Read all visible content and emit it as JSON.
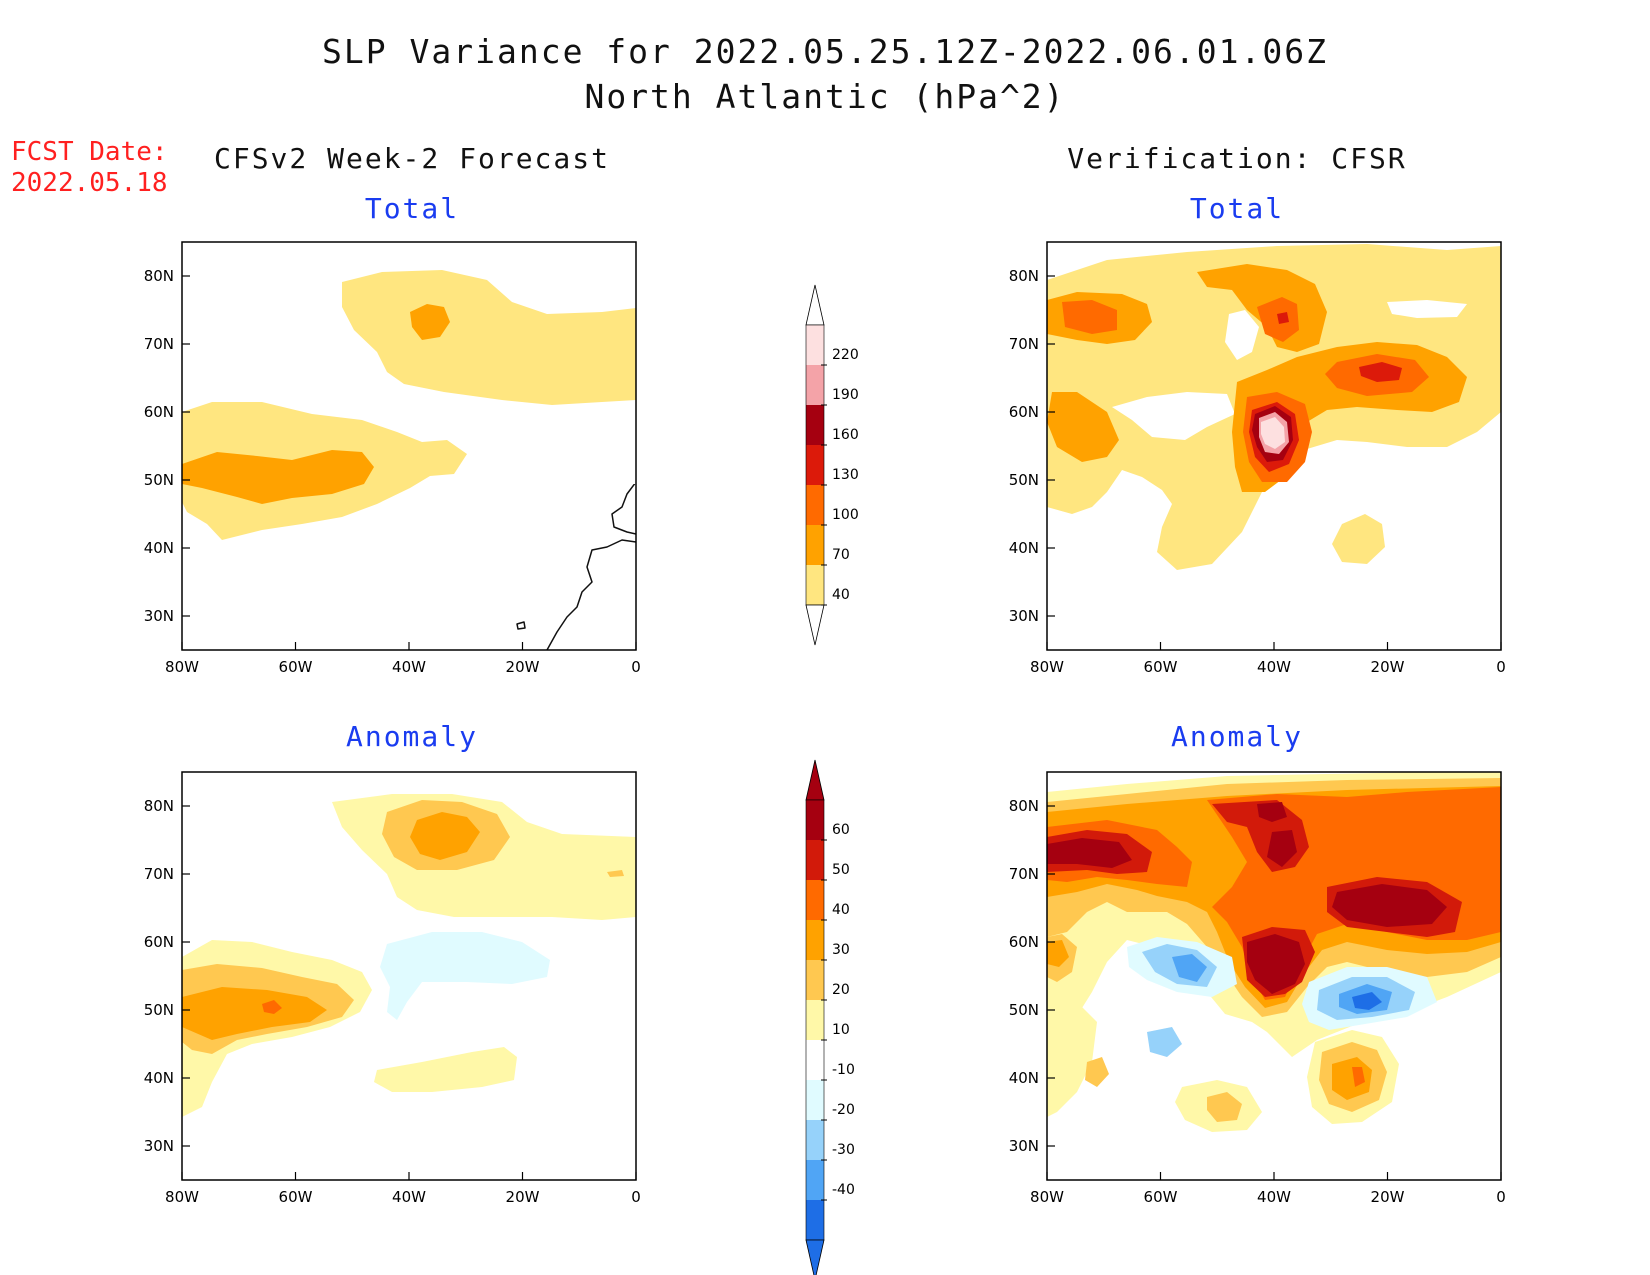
{
  "title": {
    "line1": "SLP Variance for 2022.05.25.12Z-2022.06.01.06Z",
    "line2": "North Atlantic (hPa^2)"
  },
  "fcst": {
    "label": "FCST Date:",
    "date": "2022.05.18"
  },
  "columns": {
    "left": "CFSv2 Week-2 Forecast",
    "right": "Verification: CFSR"
  },
  "panels": [
    {
      "id": "fc-total",
      "subtitle": "Total"
    },
    {
      "id": "vf-total",
      "subtitle": "Total"
    },
    {
      "id": "fc-anom",
      "subtitle": "Anomaly"
    },
    {
      "id": "vf-anom",
      "subtitle": "Anomaly"
    }
  ],
  "axes": {
    "lon_ticks": [
      "80W",
      "60W",
      "40W",
      "20W",
      "0"
    ],
    "lat_ticks": [
      "80N",
      "70N",
      "60N",
      "50N",
      "40N",
      "30N"
    ],
    "lon_range": [
      -80,
      0
    ],
    "lat_range": [
      25,
      85
    ]
  },
  "colorbars": {
    "total": {
      "levels": [
        "220",
        "190",
        "160",
        "130",
        "100",
        "70",
        "40"
      ],
      "colors": [
        "#fde0e0",
        "#f4a3a8",
        "#a50010",
        "#dc1a0a",
        "#ff6a00",
        "#ffa200",
        "#ffe680"
      ]
    },
    "anomaly": {
      "levels": [
        "60",
        "50",
        "40",
        "30",
        "20",
        "10",
        "-10",
        "-20",
        "-30",
        "-40"
      ],
      "colors": [
        "#a50010",
        "#d21a0a",
        "#ff6a00",
        "#ffa200",
        "#ffc850",
        "#fff8a8",
        "#ffffff",
        "#e0fbff",
        "#96d2fa",
        "#50a5f5",
        "#1e6ee6"
      ]
    }
  }
}
